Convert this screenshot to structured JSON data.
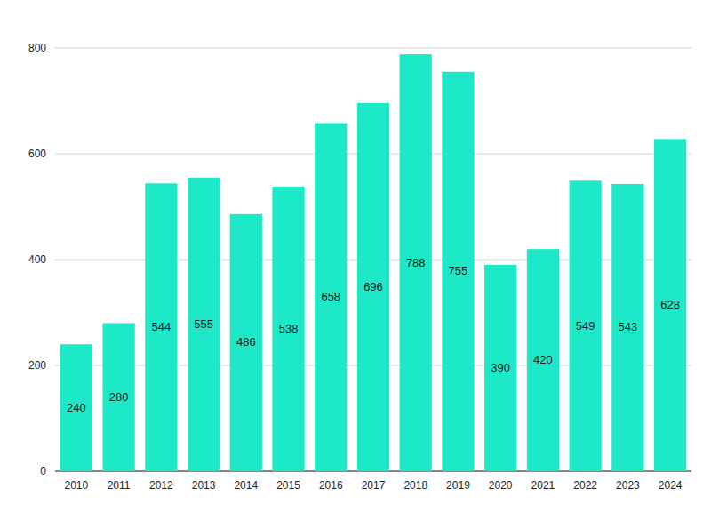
{
  "chart_data": {
    "type": "bar",
    "categories": [
      "2010",
      "2011",
      "2012",
      "2013",
      "2014",
      "2015",
      "2016",
      "2017",
      "2018",
      "2019",
      "2020",
      "2021",
      "2022",
      "2023",
      "2024"
    ],
    "values": [
      240,
      280,
      544,
      555,
      486,
      538,
      658,
      696,
      788,
      755,
      390,
      420,
      549,
      543,
      628
    ],
    "color": "#1de9c9",
    "ylim": [
      0,
      800
    ],
    "yticks": [
      0,
      200,
      400,
      600,
      800
    ],
    "grid": true,
    "data_labels": true
  }
}
